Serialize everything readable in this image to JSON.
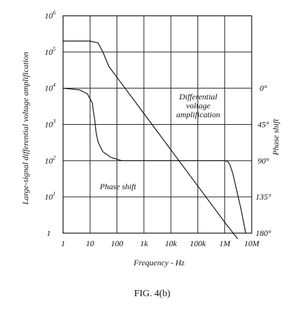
{
  "chart_data": {
    "type": "line",
    "title": "",
    "xlabel": "Frequency - Hz",
    "ylabel": "Large-signal differential voltage amplification",
    "ylabel_right": "Phase shift",
    "x_scale": "log",
    "y_scale": "log",
    "xlim": [
      1,
      10000000
    ],
    "ylim": [
      1,
      1000000
    ],
    "y2lim_deg": [
      180,
      0
    ],
    "grid": true,
    "x_ticks": [
      {
        "value": 1,
        "label": "1"
      },
      {
        "value": 10,
        "label": "10"
      },
      {
        "value": 100,
        "label": "100"
      },
      {
        "value": 1000,
        "label": "1k"
      },
      {
        "value": 10000,
        "label": "10k"
      },
      {
        "value": 100000,
        "label": "100k"
      },
      {
        "value": 1000000,
        "label": "1M"
      },
      {
        "value": 10000000,
        "label": "10M"
      }
    ],
    "y_ticks": [
      {
        "value": 1,
        "base": "1",
        "exp": ""
      },
      {
        "value": 10,
        "base": "10",
        "exp": "1"
      },
      {
        "value": 100,
        "base": "10",
        "exp": "2"
      },
      {
        "value": 1000,
        "base": "10",
        "exp": "3"
      },
      {
        "value": 10000,
        "base": "10",
        "exp": "4"
      },
      {
        "value": 100000,
        "base": "10",
        "exp": "5"
      },
      {
        "value": 1000000,
        "base": "10",
        "exp": "6"
      }
    ],
    "y2_ticks": [
      {
        "deg": 0,
        "label": "0°"
      },
      {
        "deg": 45,
        "label": "45°"
      },
      {
        "deg": 90,
        "label": "90°"
      },
      {
        "deg": 135,
        "label": "135°"
      },
      {
        "deg": 180,
        "label": "180°"
      }
    ],
    "series": [
      {
        "axis": "left",
        "x": [
          1,
          10,
          20,
          30,
          50,
          100,
          1000,
          10000,
          100000,
          1000000,
          3000000
        ],
        "y": [
          200000,
          200000,
          178000,
          100000,
          40000,
          20000,
          2000,
          200,
          20,
          2,
          0.7
        ]
      },
      {
        "axis": "right",
        "x": [
          1,
          4,
          8,
          12,
          15,
          17,
          20,
          30,
          60,
          150,
          1000,
          10000,
          100000,
          1000000,
          1300000,
          1600000,
          2000000,
          4000000,
          6000000
        ],
        "y_deg": [
          0,
          2,
          7,
          18,
          40,
          56,
          67,
          79,
          86,
          90,
          90,
          90,
          90,
          90,
          91,
          96,
          106,
          150,
          180
        ]
      }
    ],
    "annotations": [
      {
        "lines": [
          "Differential",
          "voltage",
          "amplification"
        ]
      },
      {
        "lines": [
          "Phase shift"
        ]
      }
    ]
  },
  "caption": "FIG. 4(b)"
}
